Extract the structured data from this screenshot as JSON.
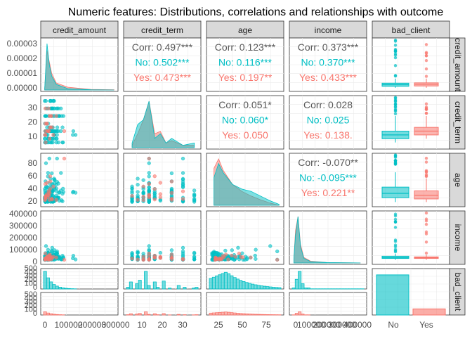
{
  "chart_data": {
    "type": "scatter",
    "title": "Numeric features: Distributions, correlations and relationships with outcome",
    "variables": [
      "credit_amount",
      "credit_term",
      "age",
      "income",
      "bad_client"
    ],
    "row_strip_labels": [
      "credit_amount",
      "credit_term",
      "age",
      "income",
      "bad_client"
    ],
    "row_strip_display": [
      "credit_amount",
      "credit_term",
      "age",
      "income",
      "bad_client"
    ],
    "groups": [
      "No",
      "Yes"
    ],
    "colors": {
      "No": "#00BFC4",
      "Yes": "#F8766D"
    },
    "ticks": {
      "credit_amount": [
        "0",
        "100000",
        "200000",
        "300000"
      ],
      "credit_term": [
        "10",
        "20",
        "30"
      ],
      "age": [
        "25",
        "50",
        "75"
      ],
      "income": [
        "0",
        "100000",
        "200000",
        "300000",
        "400000"
      ],
      "credit_amount_density": [
        "0.00000",
        "0.00001",
        "0.00002",
        "0.00003"
      ],
      "credit_term_y": [
        "10",
        "20",
        "30"
      ],
      "age_y": [
        "20",
        "40",
        "60",
        "80"
      ],
      "income_y": [
        "0",
        "100000",
        "200000",
        "300000",
        "400000"
      ],
      "count_y": [
        "0",
        "100",
        "200",
        "300",
        "400",
        "500"
      ],
      "bad_client_x": [
        "No",
        "Yes"
      ]
    },
    "correlations": [
      {
        "pair": [
          "credit_amount",
          "credit_term"
        ],
        "Corr": "Corr: 0.497***",
        "No": "No: 0.502***",
        "Yes": "Yes: 0.473***"
      },
      {
        "pair": [
          "credit_amount",
          "age"
        ],
        "Corr": "Corr: 0.123***",
        "No": "No: 0.116***",
        "Yes": "Yes: 0.197**"
      },
      {
        "pair": [
          "credit_amount",
          "income"
        ],
        "Corr": "Corr: 0.373***",
        "No": "No: 0.370***",
        "Yes": "Yes: 0.433***"
      },
      {
        "pair": [
          "credit_term",
          "age"
        ],
        "Corr": "Corr: 0.051*",
        "No": "No: 0.060*",
        "Yes": "Yes: 0.050"
      },
      {
        "pair": [
          "credit_term",
          "income"
        ],
        "Corr": "Corr: 0.028",
        "No": "No: 0.025",
        "Yes": "Yes: 0.138."
      },
      {
        "pair": [
          "age",
          "income"
        ],
        "Corr": "Corr: -0.070**",
        "No": "No: -0.095***",
        "Yes": "Yes: 0.221**"
      }
    ],
    "bad_client_counts": {
      "No": 460,
      "Yes": 70
    },
    "boxplots": {
      "credit_amount": {
        "No": [
          0,
          10000,
          20000,
          30000,
          60000
        ],
        "Yes": [
          0,
          12000,
          22000,
          32000,
          60000
        ]
      },
      "credit_term": {
        "No": [
          3,
          6,
          9,
          12,
          24
        ],
        "Yes": [
          6,
          9,
          12,
          15,
          24
        ]
      },
      "age": {
        "No": [
          18,
          25,
          32,
          42,
          66
        ],
        "Yes": [
          18,
          23,
          29,
          36,
          56
        ]
      },
      "income": {
        "No": [
          5000,
          18000,
          25000,
          38000,
          60000
        ],
        "Yes": [
          5000,
          18000,
          25000,
          32000,
          50000
        ]
      }
    },
    "densities": {
      "credit_term": {
        "x": [
          3,
          6,
          9,
          12,
          15,
          18,
          21,
          24,
          30,
          36
        ],
        "No": [
          0.1,
          0.5,
          0.6,
          1.0,
          0.2,
          0.3,
          0.1,
          0.2,
          0.05,
          0.1
        ],
        "Yes": [
          0.05,
          0.3,
          0.6,
          1.0,
          0.3,
          0.35,
          0.1,
          0.15,
          0.05,
          0.05
        ]
      },
      "age": {
        "x": [
          20,
          25,
          30,
          40,
          50,
          60,
          70,
          80,
          90
        ],
        "No": [
          0.6,
          0.9,
          0.7,
          0.45,
          0.35,
          0.3,
          0.2,
          0.1,
          0.02
        ],
        "Yes": [
          0.8,
          1.0,
          0.75,
          0.45,
          0.3,
          0.2,
          0.12,
          0.05,
          0.0
        ]
      },
      "credit_amount": {
        "x": [
          0,
          10000,
          20000,
          30000,
          50000,
          100000,
          200000,
          300000
        ],
        "No": [
          1e-06,
          3.3e-05,
          1.8e-05,
          1e-05,
          4e-06,
          1e-06,
          2e-07,
          0.0
        ],
        "Yes": [
          1e-06,
          2.8e-05,
          2e-05,
          1.2e-05,
          5e-06,
          2e-06,
          4e-07,
          2e-07
        ]
      },
      "income": {
        "x": [
          0,
          10000,
          25000,
          40000,
          60000,
          100000,
          200000,
          400000
        ],
        "No": [
          0.1,
          0.6,
          1.0,
          0.35,
          0.1,
          0.03,
          0.01,
          0.0
        ],
        "Yes": [
          0.1,
          0.7,
          1.0,
          0.4,
          0.12,
          0.04,
          0.01,
          0.0
        ]
      }
    }
  }
}
